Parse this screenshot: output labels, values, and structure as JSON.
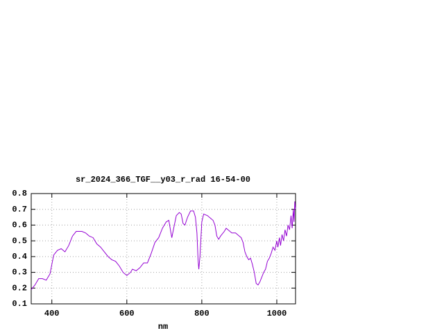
{
  "chart_data": {
    "type": "line",
    "title": "sr_2024_366_TGF__y03_r_rad 16-54-00",
    "x_label": "nm",
    "xlim": [
      345,
      1050
    ],
    "xticks": [
      400,
      600,
      800,
      1000
    ],
    "ylim": [
      0.1,
      0.8
    ],
    "yticks": [
      0.1,
      0.2,
      0.3,
      0.4,
      0.5,
      0.6,
      0.7,
      0.8
    ],
    "grid": true,
    "series": [
      {
        "color": "#9400d3",
        "x": [
          345,
          355,
          365,
          375,
          385,
          395,
          400,
          405,
          415,
          425,
          435,
          445,
          455,
          465,
          480,
          490,
          500,
          510,
          520,
          530,
          540,
          550,
          560,
          570,
          580,
          590,
          600,
          610,
          615,
          625,
          635,
          645,
          655,
          665,
          675,
          685,
          695,
          705,
          712,
          717,
          720,
          725,
          732,
          740,
          745,
          750,
          755,
          762,
          770,
          778,
          783,
          787,
          790,
          792,
          795,
          800,
          805,
          815,
          825,
          830,
          835,
          840,
          845,
          850,
          860,
          865,
          875,
          880,
          890,
          900,
          905,
          910,
          915,
          920,
          925,
          930,
          935,
          940,
          945,
          950,
          955,
          960,
          965,
          970,
          975,
          980,
          985,
          990,
          995,
          1000,
          1003,
          1007,
          1010,
          1014,
          1018,
          1022,
          1026,
          1030,
          1034,
          1038,
          1041,
          1044,
          1046,
          1048,
          1050
        ],
        "values": [
          0.19,
          0.22,
          0.26,
          0.26,
          0.25,
          0.29,
          0.35,
          0.41,
          0.44,
          0.45,
          0.43,
          0.47,
          0.53,
          0.56,
          0.56,
          0.55,
          0.53,
          0.52,
          0.48,
          0.46,
          0.43,
          0.4,
          0.38,
          0.37,
          0.34,
          0.3,
          0.28,
          0.3,
          0.32,
          0.31,
          0.33,
          0.36,
          0.36,
          0.42,
          0.49,
          0.52,
          0.58,
          0.62,
          0.63,
          0.56,
          0.52,
          0.58,
          0.66,
          0.68,
          0.67,
          0.61,
          0.6,
          0.65,
          0.69,
          0.69,
          0.65,
          0.55,
          0.38,
          0.32,
          0.4,
          0.62,
          0.67,
          0.66,
          0.64,
          0.63,
          0.6,
          0.53,
          0.51,
          0.53,
          0.56,
          0.58,
          0.56,
          0.55,
          0.55,
          0.53,
          0.52,
          0.49,
          0.43,
          0.4,
          0.38,
          0.39,
          0.35,
          0.3,
          0.23,
          0.22,
          0.24,
          0.27,
          0.3,
          0.32,
          0.37,
          0.39,
          0.42,
          0.46,
          0.44,
          0.5,
          0.46,
          0.52,
          0.47,
          0.54,
          0.5,
          0.57,
          0.53,
          0.6,
          0.57,
          0.66,
          0.58,
          0.7,
          0.62,
          0.75,
          0.7
        ]
      }
    ]
  }
}
